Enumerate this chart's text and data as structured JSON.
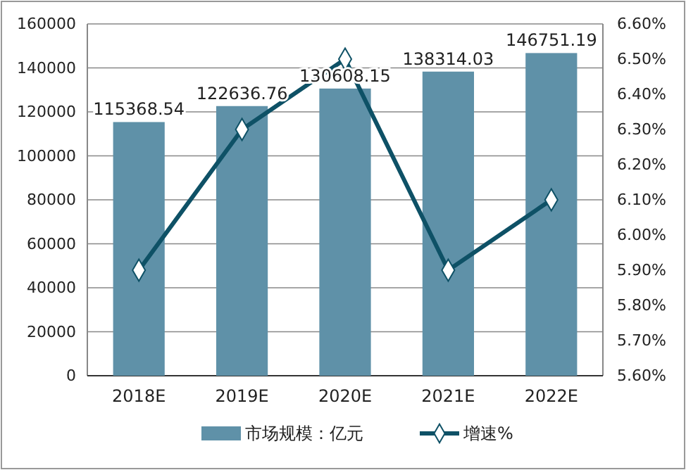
{
  "chart_data": {
    "type": "bar",
    "categories": [
      "2018E",
      "2019E",
      "2020E",
      "2021E",
      "2022E"
    ],
    "series": [
      {
        "name": "市场规模：亿元",
        "color": "#5f91a8",
        "values": [
          115368.54,
          122636.76,
          130608.15,
          138314.03,
          146751.19
        ],
        "value_labels": [
          "115368.54",
          "122636.76",
          "130608.15",
          "138314.03",
          "146751.19"
        ]
      },
      {
        "name": "增速%",
        "type": "line",
        "axis": "y2",
        "color": "#0e5166",
        "marker": "diamond",
        "values": [
          5.9,
          6.3,
          6.5,
          5.9,
          6.1
        ]
      }
    ],
    "ylim": [
      0,
      160000
    ],
    "yticks": [
      0,
      20000,
      40000,
      60000,
      80000,
      100000,
      120000,
      140000,
      160000
    ],
    "y2lim": [
      5.6,
      6.6
    ],
    "y2ticks": [
      {
        "value": 5.6,
        "label": "5.60%"
      },
      {
        "value": 5.7,
        "label": "5.70%"
      },
      {
        "value": 5.8,
        "label": "5.80%"
      },
      {
        "value": 5.9,
        "label": "5.90%"
      },
      {
        "value": 6.0,
        "label": "6.00%"
      },
      {
        "value": 6.1,
        "label": "6.10%"
      },
      {
        "value": 6.2,
        "label": "6.20%"
      },
      {
        "value": 6.3,
        "label": "6.30%"
      },
      {
        "value": 6.4,
        "label": "6.40%"
      },
      {
        "value": 6.5,
        "label": "6.50%"
      },
      {
        "value": 6.6,
        "label": "6.60%"
      }
    ],
    "grid": "y",
    "legend": "bottom"
  }
}
